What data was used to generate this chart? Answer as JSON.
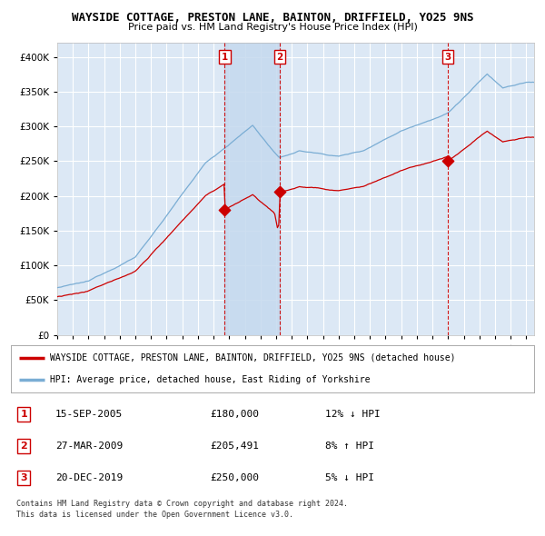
{
  "title": "WAYSIDE COTTAGE, PRESTON LANE, BAINTON, DRIFFIELD, YO25 9NS",
  "subtitle": "Price paid vs. HM Land Registry's House Price Index (HPI)",
  "legend_line1": "WAYSIDE COTTAGE, PRESTON LANE, BAINTON, DRIFFIELD, YO25 9NS (detached house)",
  "legend_line2": "HPI: Average price, detached house, East Riding of Yorkshire",
  "footer1": "Contains HM Land Registry data © Crown copyright and database right 2024.",
  "footer2": "This data is licensed under the Open Government Licence v3.0.",
  "transactions": [
    {
      "num": 1,
      "date": "15-SEP-2005",
      "price": "£180,000",
      "hpi": "12% ↓ HPI",
      "x": 2005.71
    },
    {
      "num": 2,
      "date": "27-MAR-2009",
      "price": "£205,491",
      "hpi": "8% ↑ HPI",
      "x": 2009.23
    },
    {
      "num": 3,
      "date": "20-DEC-2019",
      "price": "£250,000",
      "hpi": "5% ↓ HPI",
      "x": 2019.97
    }
  ],
  "transaction_prices": [
    180000,
    205491,
    250000
  ],
  "ylim": [
    0,
    420000
  ],
  "yticks": [
    0,
    50000,
    100000,
    150000,
    200000,
    250000,
    300000,
    350000,
    400000
  ],
  "background_color": "#ffffff",
  "plot_bg_color": "#dce8f5",
  "grid_color": "#ffffff",
  "red_line_color": "#cc0000",
  "blue_line_color": "#7aadd4",
  "shade_color": "#c5d9ee",
  "vline_color": "#cc0000",
  "xmin": 1995.0,
  "xmax": 2025.5
}
